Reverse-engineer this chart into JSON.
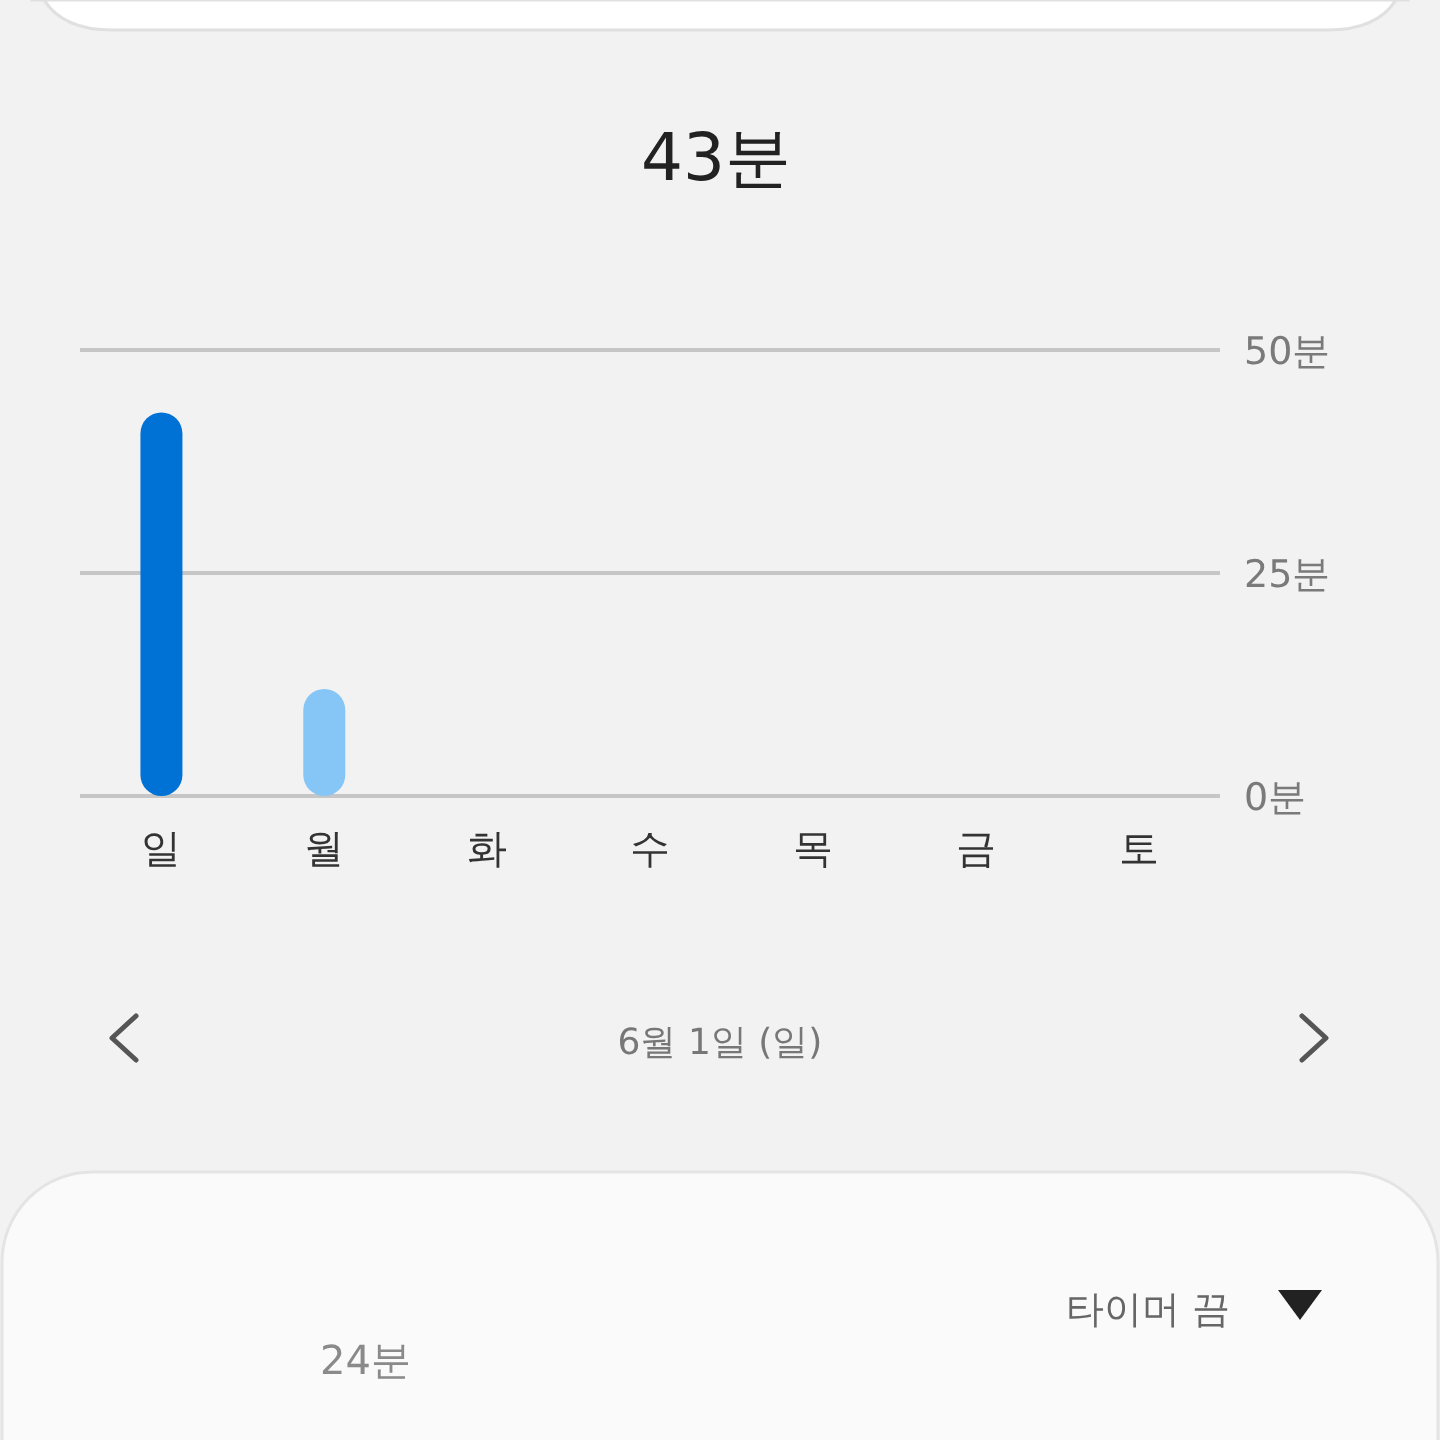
{
  "chart_data": {
    "type": "bar",
    "title": "43분",
    "categories": [
      "일",
      "월",
      "화",
      "수",
      "목",
      "금",
      "토"
    ],
    "values": [
      43,
      12,
      null,
      null,
      null,
      null,
      null
    ],
    "colors": [
      "#0072d6",
      "#86c6f6",
      null,
      null,
      null,
      null,
      null
    ],
    "ylim": [
      0,
      50
    ],
    "yticks": [
      {
        "value": 0,
        "label": "0분"
      },
      {
        "value": 25,
        "label": "25분"
      },
      {
        "value": 50,
        "label": "50분"
      }
    ],
    "grid": "y",
    "annotations": [
      "6월 1일 (일)",
      "24분",
      "타이머 끔"
    ]
  }
}
